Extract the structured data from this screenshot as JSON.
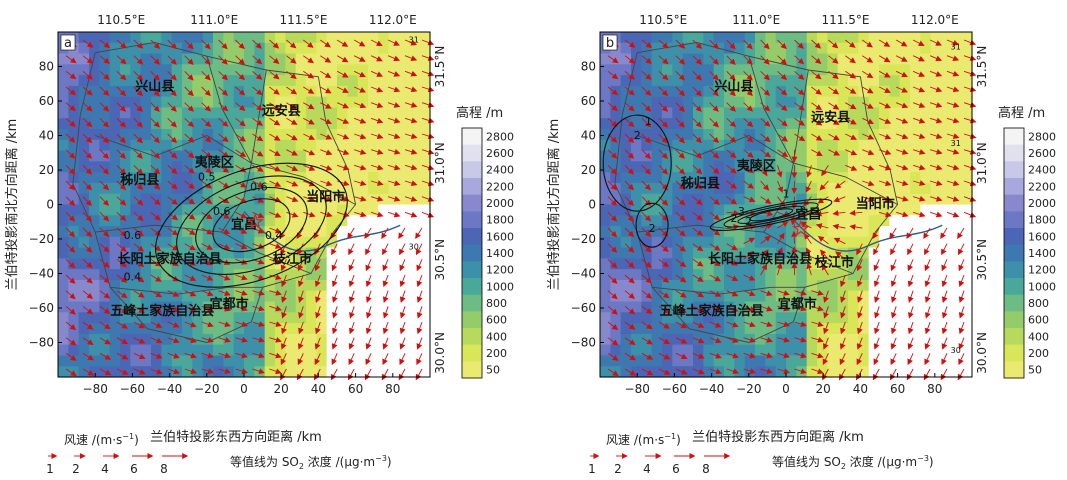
{
  "colorbar": {
    "title": "高程 /m",
    "ticks": [
      "2800",
      "2600",
      "2400",
      "2200",
      "2000",
      "1800",
      "1600",
      "1400",
      "1200",
      "1000",
      "800",
      "600",
      "400",
      "200",
      "50"
    ],
    "colors": [
      "#f4f4f4",
      "#e0e0ee",
      "#c8c8e8",
      "#a8a8dc",
      "#8888cc",
      "#6c78c4",
      "#4a66b4",
      "#3e78b0",
      "#3c90aa",
      "#4aa89a",
      "#6cbc84",
      "#94cc6a",
      "#b8da5c",
      "#d8e658",
      "#eaea70"
    ]
  },
  "axes": {
    "x_ticks_bottom": [
      "−80",
      "−60",
      "−40",
      "−20",
      "0",
      "20",
      "40",
      "60",
      "80"
    ],
    "y_ticks_left": [
      "80",
      "60",
      "40",
      "20",
      "0",
      "−20",
      "−40",
      "−60",
      "−80"
    ],
    "lon_ticks_top": [
      "110.5°E",
      "111.0°E",
      "111.5°E",
      "112.0°E"
    ],
    "lat_ticks_right": [
      "31.5°N",
      "31.0°N",
      "30.5°N",
      "30.0°N"
    ],
    "xlabel": "兰伯特投影东西方向距离 /km",
    "ylabel": "兰伯特投影南北方向距离 /km"
  },
  "panels": [
    {
      "label": "a",
      "places": [
        "兴山县",
        "远安县",
        "夷陵区",
        "秭归县",
        "宜昌",
        "当阳市",
        "长阳土家族自治县",
        "枝江市",
        "宜都市",
        "五峰土家族自治县"
      ],
      "contour_labels": [
        "0.5",
        "0.6",
        "0.6",
        "0.6",
        "0.4",
        "0.4"
      ],
      "grid_marks": [
        "31",
        "30"
      ]
    },
    {
      "label": "b",
      "places": [
        "兴山县",
        "远安县",
        "夷陵区",
        "秭归县",
        "宜昌",
        "当阳市",
        "长阳土家族自治县",
        "枝江市",
        "宜都市",
        "五峰土家族自治县"
      ],
      "contour_labels": [
        "1",
        "2",
        "1",
        "2",
        "2",
        "3",
        "2"
      ],
      "grid_marks": [
        "31",
        "31",
        "30"
      ]
    }
  ],
  "legend": {
    "wind_title": "风速 /(m·s",
    "wind_title_sup": "−1",
    "wind_title_end": ")",
    "wind_values": [
      "1",
      "2",
      "4",
      "6",
      "8"
    ],
    "contour_note_prefix": "等值线为 SO",
    "contour_note_sub": "2",
    "contour_note_mid": " 浓度 /(μg·m",
    "contour_note_sup": "−3",
    "contour_note_end": ")"
  }
}
